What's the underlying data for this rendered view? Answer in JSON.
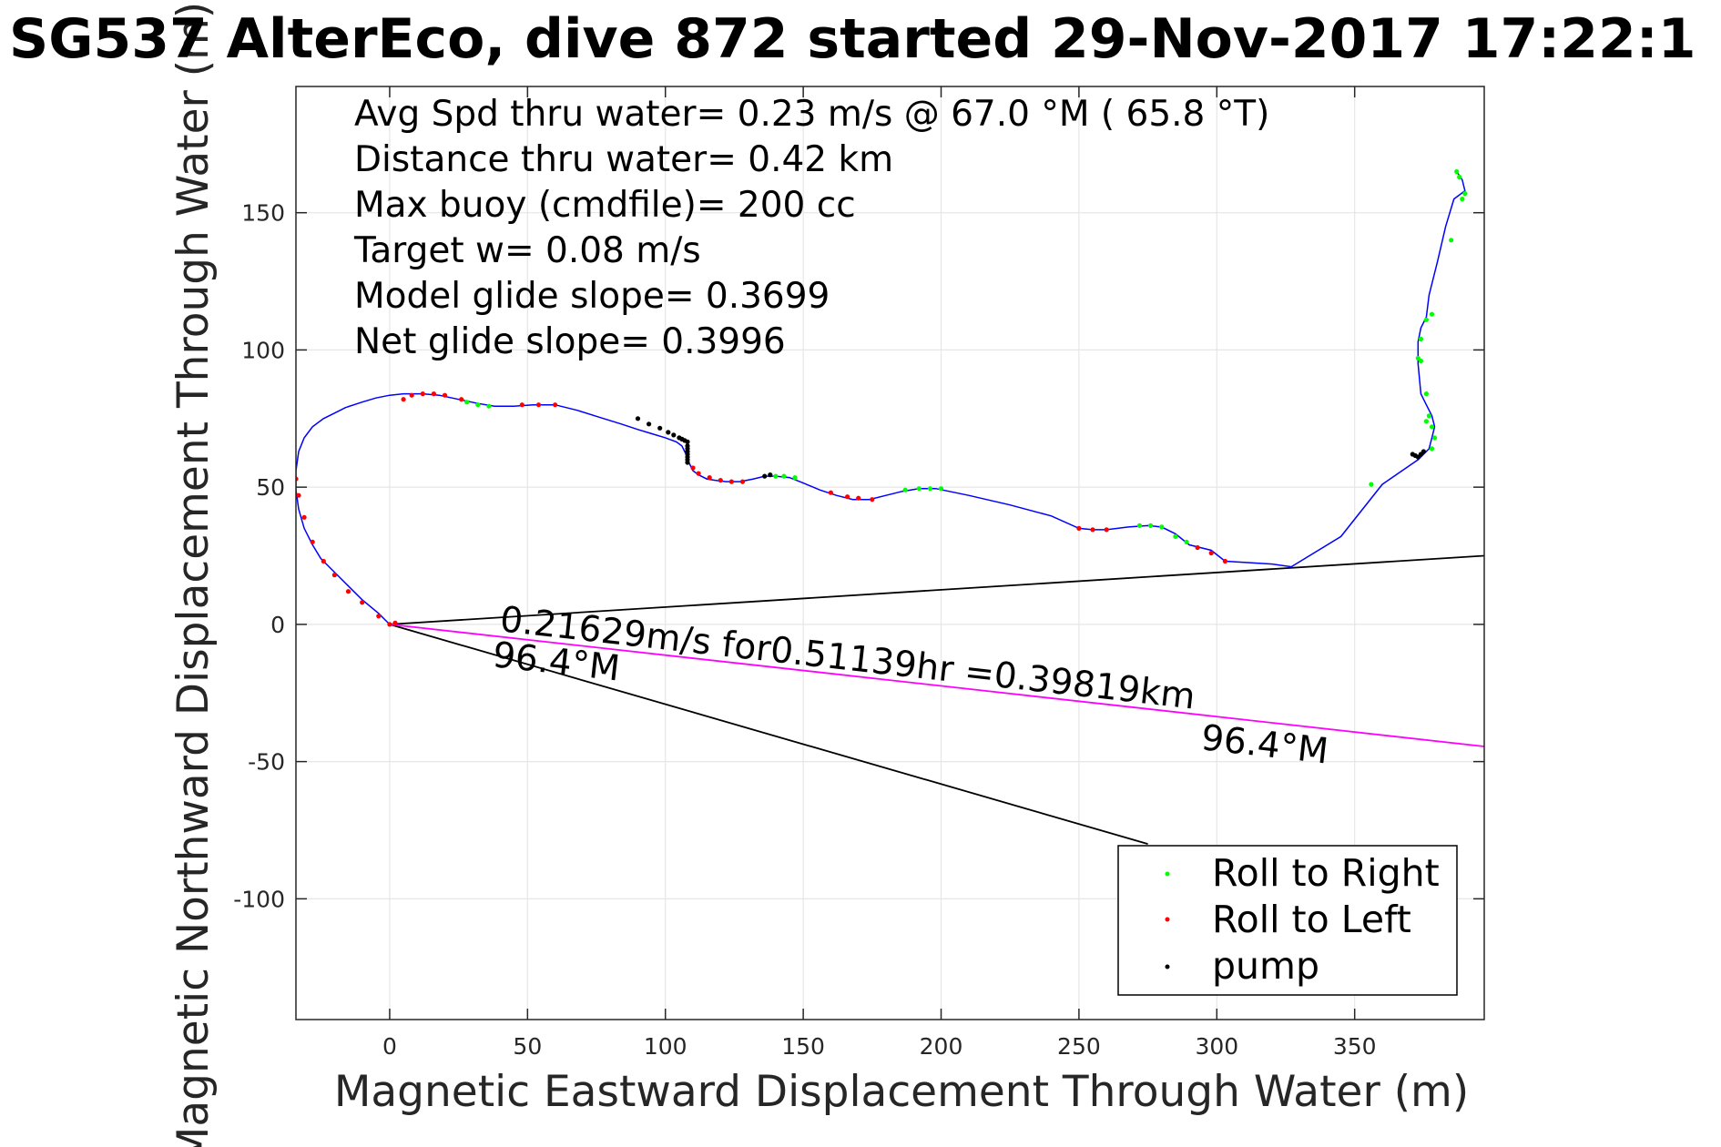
{
  "chart_data": {
    "type": "line",
    "title": "SG537 AlterEco, dive 872 started 29-Nov-2017 17:22:1",
    "xlabel": "Magnetic Eastward Displacement Through Water (m)",
    "ylabel": "Magnetic Northward Displacement Through Water (m)",
    "xlim": [
      -34,
      397
    ],
    "ylim": [
      -144,
      196
    ],
    "xticks": [
      0,
      50,
      100,
      150,
      200,
      250,
      300,
      350
    ],
    "yticks": [
      -100,
      -50,
      0,
      50,
      100,
      150
    ],
    "grid": true,
    "legend_position": "bottom-right",
    "info_lines": [
      "Avg Spd thru water=  0.23 m/s @  67.0 °M ( 65.8 °T)",
      "Distance thru water=  0.42 km",
      "Max buoy (cmdfile)= 200 cc",
      "Target w= 0.08 m/s",
      "Model glide slope= 0.3699",
      "Net glide slope= 0.3996"
    ],
    "annotations": {
      "current": "0.21629m/s for0.51139hr =0.39819km",
      "heading_near": "96.4°M",
      "heading_far": "96.4°M"
    },
    "colors": {
      "track": "#0000ff",
      "roll_right": "#00ff00",
      "roll_left": "#ff0000",
      "pump": "#000000",
      "current_vector": "#ff00ff",
      "guide_lines": "#000000"
    },
    "track": {
      "name": "track",
      "x": [
        0,
        -4,
        -10,
        -15,
        -20,
        -25,
        -28,
        -31,
        -33,
        -34,
        -34,
        -33,
        -31,
        -28,
        -24,
        -20,
        -16,
        -10,
        -5,
        0,
        5,
        12,
        18,
        25,
        32,
        38,
        45,
        52,
        60,
        68,
        76,
        84,
        90,
        95,
        100,
        104,
        106,
        107,
        108,
        108,
        109,
        110,
        112,
        115,
        118,
        122,
        127,
        132,
        136,
        140,
        145,
        150,
        156,
        162,
        168,
        174,
        180,
        186,
        192,
        198,
        210,
        225,
        240,
        250,
        255,
        260,
        268,
        275,
        280,
        285,
        290,
        298,
        303,
        320,
        327,
        345,
        360,
        373,
        375,
        377,
        378,
        379,
        378,
        376,
        374,
        373,
        373,
        374,
        376,
        377,
        380,
        383,
        386,
        390,
        389,
        387
      ],
      "y": [
        0,
        4,
        9,
        14,
        19,
        24,
        29,
        35,
        42,
        49,
        56,
        63,
        68,
        72,
        75,
        77,
        79,
        81,
        82.5,
        83.5,
        84,
        84,
        83.5,
        82,
        80.5,
        79.5,
        79.5,
        80,
        80,
        78,
        75.5,
        73,
        71,
        69.5,
        68,
        66.5,
        65,
        63,
        61,
        60,
        58,
        56,
        54.5,
        53,
        52.5,
        52,
        52,
        53,
        54,
        54,
        53.5,
        51.5,
        49,
        47,
        45.5,
        45.5,
        47,
        48.5,
        49.5,
        49.5,
        47,
        43.5,
        39.5,
        35,
        34.5,
        34.5,
        35.5,
        36,
        35.5,
        33,
        29,
        27,
        23,
        22,
        21,
        32,
        51,
        60,
        62,
        64,
        68,
        72,
        76,
        80,
        84,
        95,
        103,
        108,
        112,
        120,
        132,
        145,
        155,
        158,
        162,
        165
      ]
    },
    "series": [
      {
        "name": "Roll to Right",
        "x": [
          28,
          32,
          36,
          140,
          143,
          147,
          187,
          192,
          196,
          200,
          272,
          276,
          280,
          285,
          289,
          356,
          376,
          377,
          378,
          379,
          378,
          376,
          374,
          373,
          374,
          376,
          378,
          385,
          389,
          390,
          388,
          387
        ],
        "y": [
          81,
          80,
          79.5,
          54,
          54,
          53.5,
          49,
          49.5,
          49.5,
          49.5,
          36,
          36,
          35.5,
          32,
          30,
          51,
          74,
          76,
          72,
          68,
          64,
          84,
          96,
          97,
          104,
          111,
          113,
          140,
          155,
          157,
          163,
          165
        ]
      },
      {
        "name": "Roll to Left",
        "x": [
          -34,
          -33,
          -31,
          -28,
          -24,
          -20,
          -15,
          -10,
          -4,
          0,
          2,
          5,
          8,
          12,
          16,
          20,
          26,
          48,
          54,
          60,
          110,
          112,
          116,
          120,
          124,
          128,
          160,
          166,
          170,
          175,
          250,
          255,
          260,
          293,
          298,
          303
        ],
        "y": [
          53,
          47,
          39,
          30,
          23,
          18,
          12,
          8,
          3,
          0,
          0.5,
          82,
          83.5,
          84,
          84,
          83.5,
          82,
          80,
          80,
          80,
          57,
          55,
          53.5,
          52.5,
          52,
          52,
          48,
          46.5,
          46,
          45.5,
          35,
          34.5,
          34.5,
          28,
          26,
          23
        ]
      },
      {
        "name": "pump",
        "x": [
          90,
          94,
          98,
          101,
          103,
          105,
          106,
          107,
          108,
          108,
          108,
          108,
          108,
          108,
          108,
          108,
          136,
          138,
          371,
          372,
          373,
          374,
          375
        ],
        "y": [
          75,
          73,
          71.5,
          70,
          69,
          68,
          67.5,
          67,
          66.5,
          65,
          64,
          63,
          62,
          61,
          60,
          59,
          54,
          54.5,
          62,
          61.5,
          61,
          62,
          63
        ]
      }
    ],
    "current_vector": {
      "x": [
        0,
        397
      ],
      "y": [
        0,
        -44.5
      ]
    },
    "guide_lines": [
      {
        "x": [
          0,
          397
        ],
        "y": [
          0,
          25
        ]
      },
      {
        "x": [
          0,
          275
        ],
        "y": [
          0,
          -80
        ]
      }
    ]
  }
}
